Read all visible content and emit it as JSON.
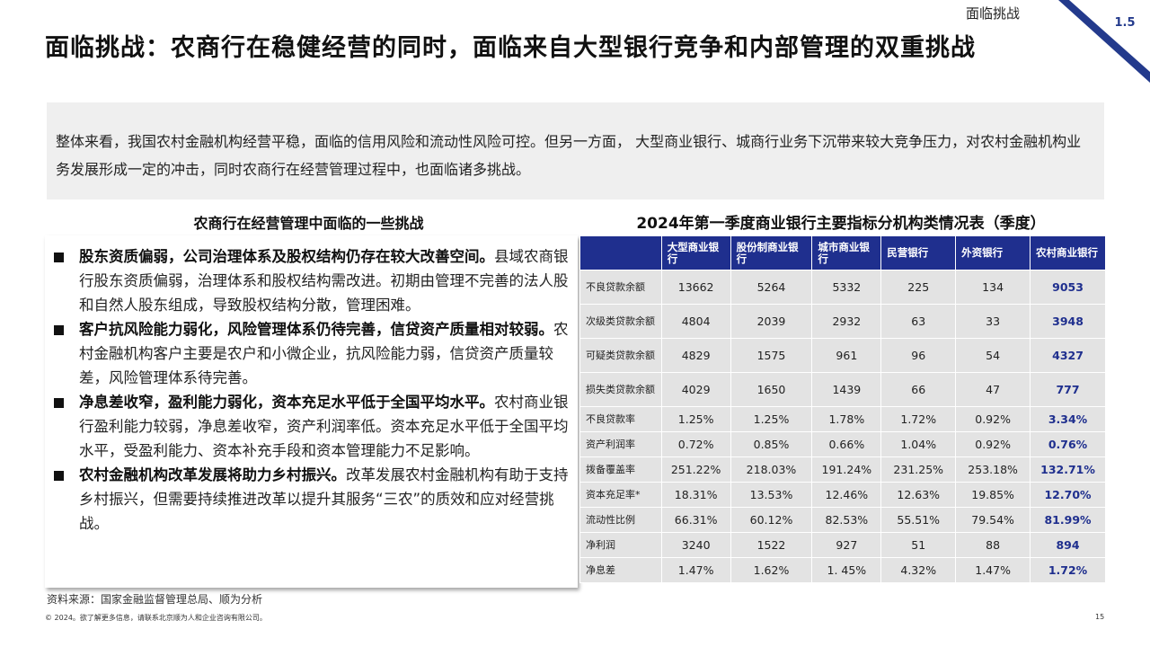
{
  "header": {
    "section_label": "面临挑战",
    "section_number": "1.5",
    "accent_color": "#1f2f8e",
    "title": "面临挑战：农商行在稳健经营的同时，面临来自大型银行竞争和内部管理的双重挑战"
  },
  "summary": {
    "text": "整体来看，我国农村金融机构经营平稳，面临的信用风险和流动性风险可控。但另一方面， 大型商业银行、城商行业务下沉带来较大竞争压力，对农村金融机构业务发展形成一定的冲击，同时农商行在经营管理过程中，也面临诸多挑战。"
  },
  "challenges": {
    "title": "农商行在经营管理中面临的一些挑战",
    "items": [
      {
        "heading": "股东资质偏弱，公司治理体系及股权结构仍存在较大改善空间。",
        "body": "县域农商银行股东资质偏弱，治理体系和股权结构需改进。初期由管理不完善的法人股和自然人股东组成，导致股权结构分散，管理困难。"
      },
      {
        "heading": "客户抗风险能力弱化，风险管理体系仍待完善，信贷资产质量相对较弱。",
        "body": "农村金融机构客户主要是农户和小微企业，抗风险能力弱，信贷资产质量较差，风险管理体系待完善。"
      },
      {
        "heading": "净息差收窄，盈利能力弱化，资本充足水平低于全国平均水平。",
        "body": "农村商业银行盈利能力较弱，净息差收窄，资产利润率低。资本充足水平低于全国平均水平，受盈利能力、资本补充手段和资本管理能力不足影响。"
      },
      {
        "heading": "农村金融机构改革发展将助力乡村振兴。",
        "body": "改革发展农村金融机构有助于支持乡村振兴，但需要持续推进改革以提升其服务“三农”的质效和应对经营挑战。"
      }
    ]
  },
  "table": {
    "title": "2024年第一季度商业银行主要指标分机构类情况表（季度）",
    "columns": [
      "大型商业银行",
      "股份制商业银行",
      "城市商业银行",
      "民营银行",
      "外资银行",
      "农村商业银行"
    ],
    "rows": [
      {
        "label": "不良贷款余额",
        "values": [
          "13662",
          "5264",
          "5332",
          "225",
          "134",
          "9053"
        ]
      },
      {
        "label": "次级类贷款余额",
        "values": [
          "4804",
          "2039",
          "2932",
          "63",
          "33",
          "3948"
        ]
      },
      {
        "label": "可疑类贷款余额",
        "values": [
          "4829",
          "1575",
          "961",
          "96",
          "54",
          "4327"
        ]
      },
      {
        "label": "损失类贷款余额",
        "values": [
          "4029",
          "1650",
          "1439",
          "66",
          "47",
          "777"
        ]
      },
      {
        "label": "不良贷款率",
        "values": [
          "1.25%",
          "1.25%",
          "1.78%",
          "1.72%",
          "0.92%",
          "3.34%"
        ]
      },
      {
        "label": "资产利润率",
        "values": [
          "0.72%",
          "0.85%",
          "0.66%",
          "1.04%",
          "0.92%",
          "0.76%"
        ]
      },
      {
        "label": "拨备覆盖率",
        "values": [
          "251.22%",
          "218.03%",
          "191.24%",
          "231.25%",
          "253.18%",
          "132.71%"
        ]
      },
      {
        "label": "资本充足率*",
        "values": [
          "18.31%",
          "13.53%",
          "12.46%",
          "12.63%",
          "19.85%",
          "12.70%"
        ]
      },
      {
        "label": "流动性比例",
        "values": [
          "66.31%",
          "60.12%",
          "82.53%",
          "55.51%",
          "79.54%",
          "81.99%"
        ]
      },
      {
        "label": "净利润",
        "values": [
          "3240",
          "1522",
          "927",
          "51",
          "88",
          "894"
        ]
      },
      {
        "label": "净息差",
        "values": [
          "1.47%",
          "1.62%",
          "1. 45%",
          "4.32%",
          "1.47%",
          "1.72%"
        ]
      }
    ]
  },
  "footer": {
    "source": "资料来源：国家金融监督管理总局、顺为分析",
    "copyright": "© 2024。欲了解更多信息，请联系北京顺为人和企业咨询有限公司。",
    "page_number": "15"
  }
}
